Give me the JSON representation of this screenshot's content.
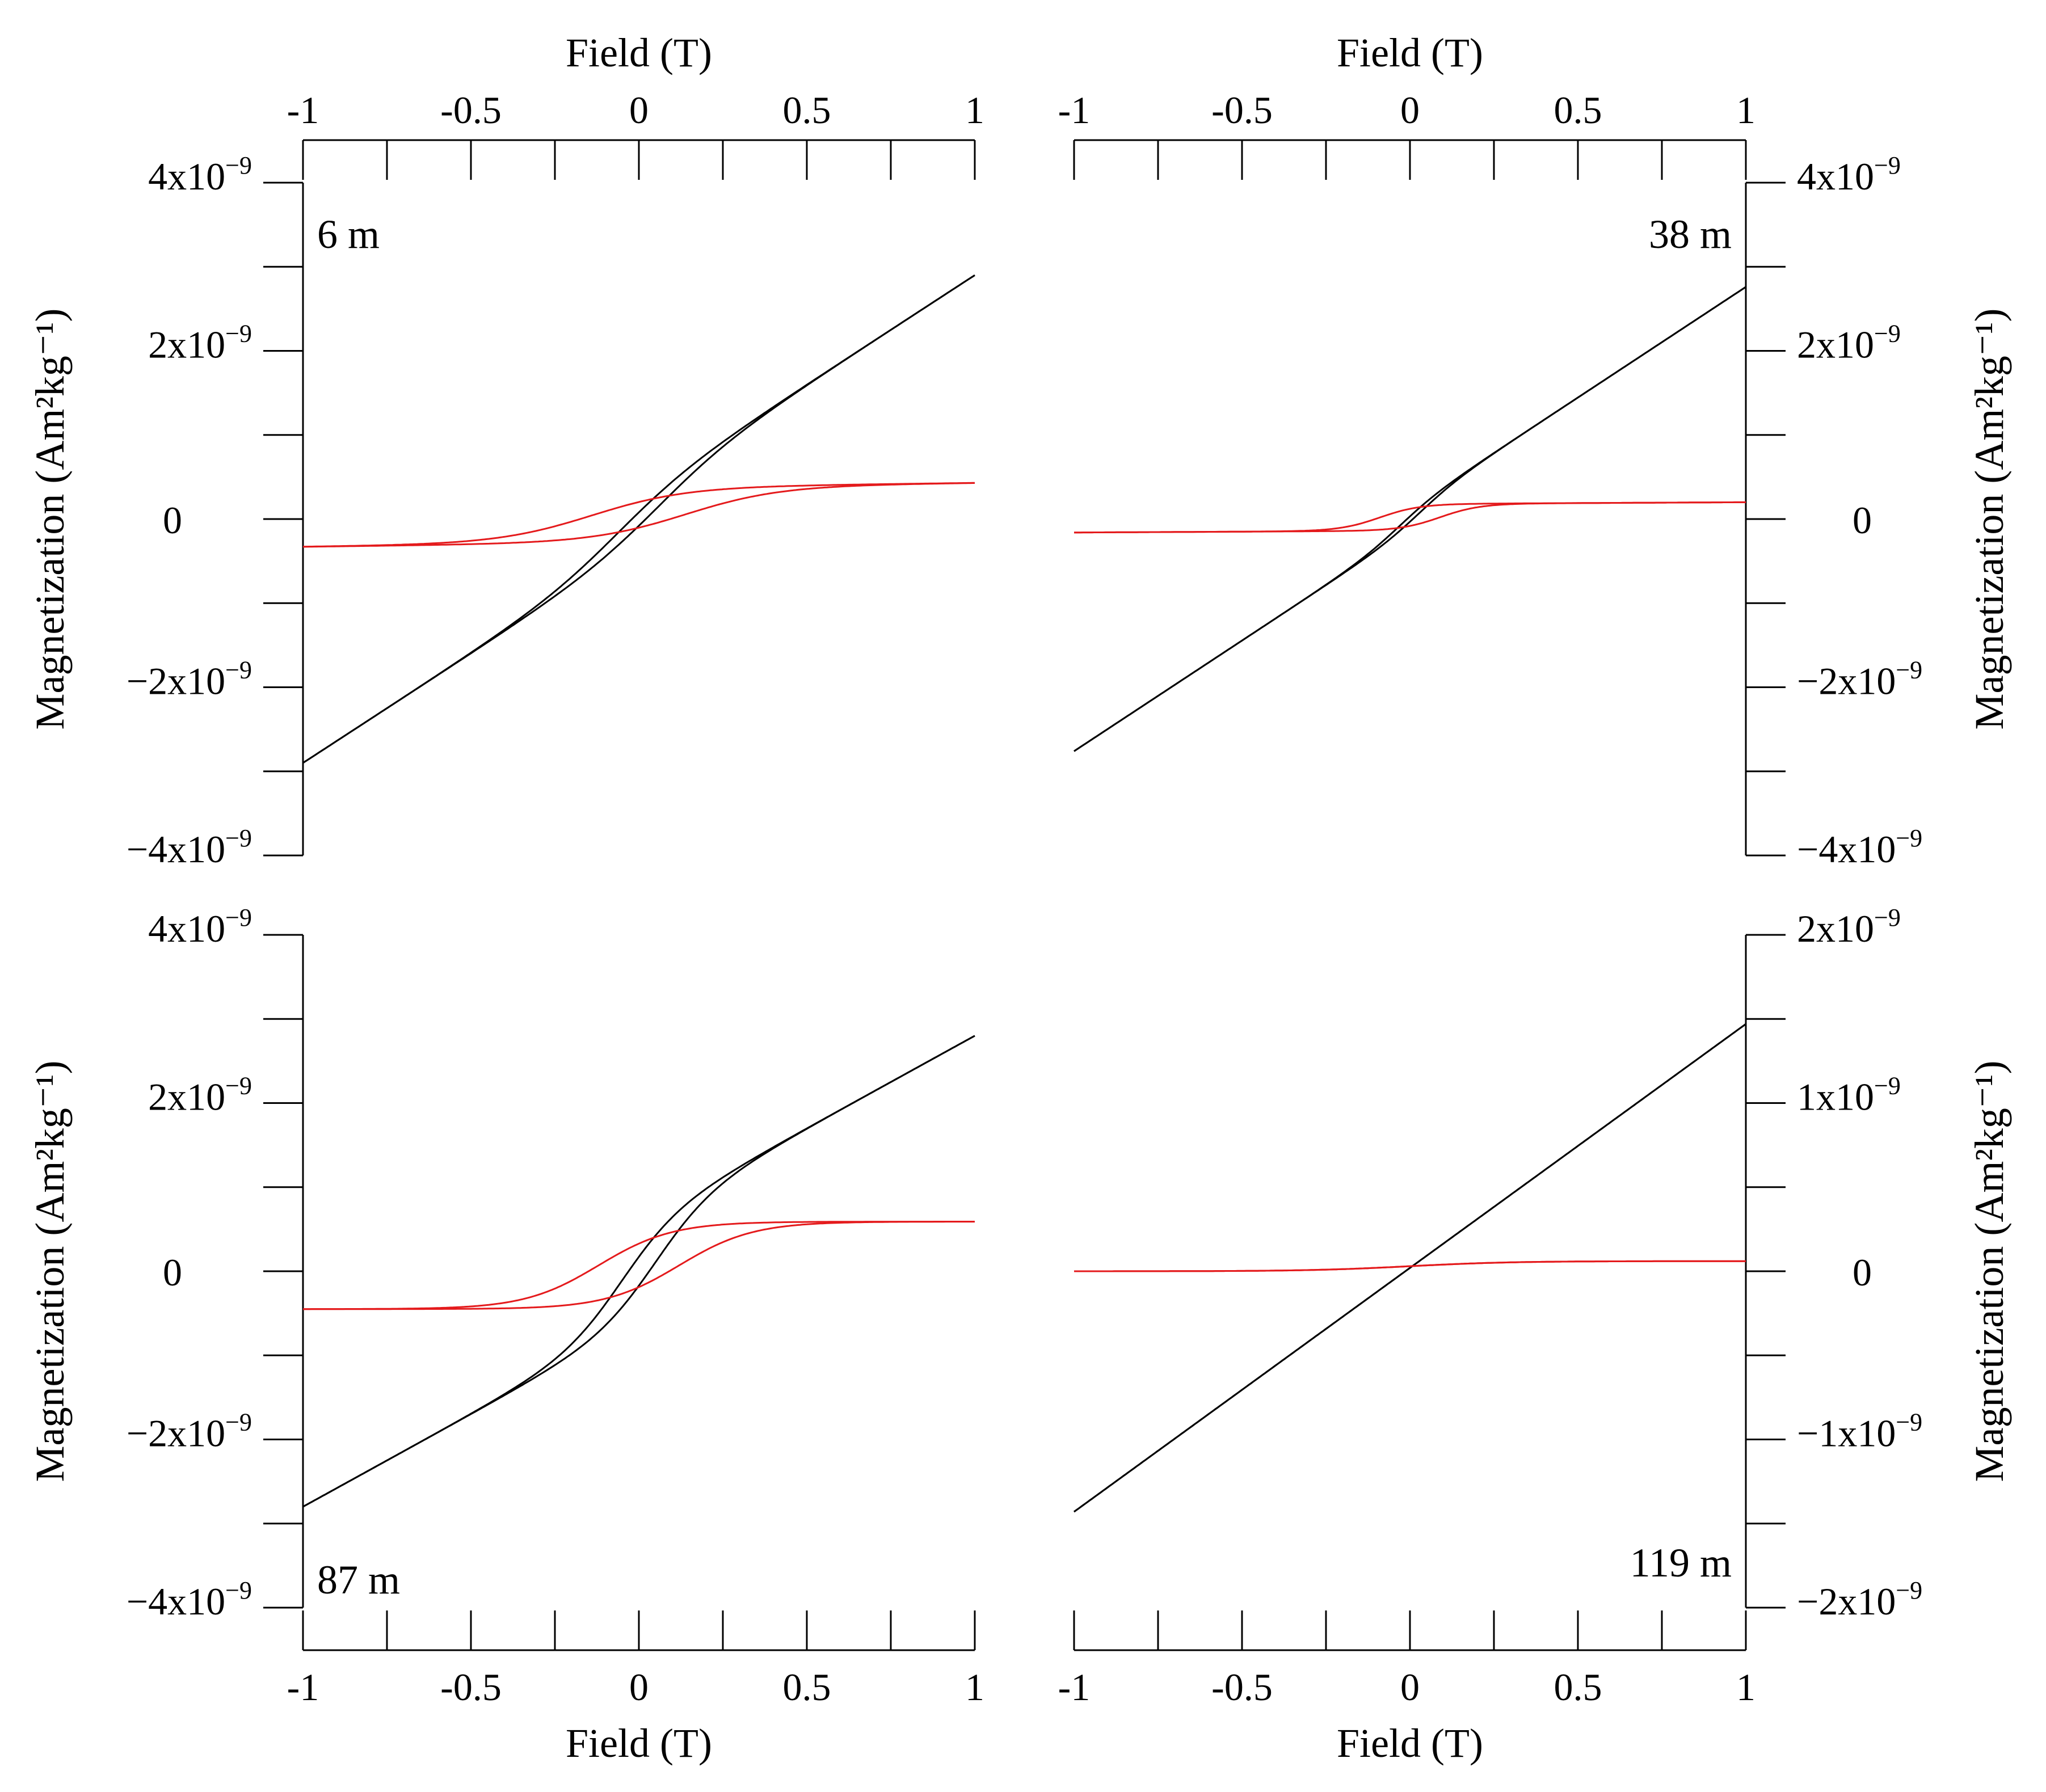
{
  "figure": {
    "x_axis_title": "Field (T)",
    "y_axis_title": "Magnetization (Am²kg⁻¹)"
  },
  "chart_data": [
    {
      "type": "line",
      "panel_label": "6 m",
      "xlabel": "Field (T)",
      "ylabel": "Magnetization (Am²kg⁻¹)",
      "xlim": [
        -1,
        1
      ],
      "ylim": [
        -4e-09,
        4e-09
      ],
      "xticks": [
        -1,
        -0.5,
        0,
        0.5,
        1
      ],
      "xtick_labels": [
        "-1",
        "-0.5",
        "0",
        "0.5",
        "1"
      ],
      "yticks": [
        -4e-09,
        -2e-09,
        0,
        2e-09,
        4e-09
      ],
      "ytick_labels": [
        {
          "base": "−4x10",
          "exp": "−9"
        },
        {
          "base": "−2x10",
          "exp": "−9"
        },
        {
          "base": "0",
          "exp": ""
        },
        {
          "base": "2x10",
          "exp": "−9"
        },
        {
          "base": "4x10",
          "exp": "−9"
        }
      ],
      "grid": false,
      "series": [
        {
          "color": "#000000",
          "loop": {
            "chi": 2.6e-09,
            "ms": 3e-10,
            "k": 0.22,
            "hc": 0.06
          }
        },
        {
          "color": "#e41a1c",
          "loop": {
            "chi": 5e-11,
            "ms": 3.3e-10,
            "k": 0.28,
            "hc": 0.14,
            "offset": 5e-11
          }
        }
      ]
    },
    {
      "type": "line",
      "panel_label": "38 m",
      "xlabel": "Field (T)",
      "ylabel": "Magnetization (Am²kg⁻¹)",
      "xlim": [
        -1,
        1
      ],
      "ylim": [
        -4e-09,
        4e-09
      ],
      "xticks": [
        -1,
        -0.5,
        0,
        0.5,
        1
      ],
      "xtick_labels": [
        "-1",
        "-0.5",
        "0",
        "0.5",
        "1"
      ],
      "yticks": [
        -4e-09,
        -2e-09,
        0,
        2e-09,
        4e-09
      ],
      "ytick_labels": [
        {
          "base": "−4x10",
          "exp": "−9"
        },
        {
          "base": "−2x10",
          "exp": "−9"
        },
        {
          "base": "0",
          "exp": ""
        },
        {
          "base": "2x10",
          "exp": "−9"
        },
        {
          "base": "4x10",
          "exp": "−9"
        }
      ],
      "grid": false,
      "series": [
        {
          "color": "#000000",
          "loop": {
            "chi": 2.63e-09,
            "ms": 1.3e-10,
            "k": 0.12,
            "hc": 0.03
          }
        },
        {
          "color": "#e41a1c",
          "loop": {
            "chi": 2e-11,
            "ms": 1.6e-10,
            "k": 0.12,
            "hc": 0.09,
            "offset": 2e-11
          }
        }
      ]
    },
    {
      "type": "line",
      "panel_label": "87 m",
      "xlabel": "Field (T)",
      "ylabel": "Magnetization (Am²kg⁻¹)",
      "xlim": [
        -1,
        1
      ],
      "ylim": [
        -4e-09,
        4e-09
      ],
      "xticks": [
        -1,
        -0.5,
        0,
        0.5,
        1
      ],
      "xtick_labels": [
        "-1",
        "-0.5",
        "0",
        "0.5",
        "1"
      ],
      "yticks": [
        -4e-09,
        -2e-09,
        0,
        2e-09,
        4e-09
      ],
      "ytick_labels": [
        {
          "base": "−4x10",
          "exp": "−9"
        },
        {
          "base": "−2x10",
          "exp": "−9"
        },
        {
          "base": "0",
          "exp": ""
        },
        {
          "base": "2x10",
          "exp": "−9"
        },
        {
          "base": "4x10",
          "exp": "−9"
        }
      ],
      "grid": false,
      "series": [
        {
          "color": "#000000",
          "loop": {
            "chi": 2.2e-09,
            "ms": 6e-10,
            "k": 0.17,
            "hc": 0.05
          }
        },
        {
          "color": "#e41a1c",
          "loop": {
            "chi": 0.0,
            "ms": 5.2e-10,
            "k": 0.22,
            "hc": 0.12,
            "offset": 7e-11
          }
        }
      ]
    },
    {
      "type": "line",
      "panel_label": "119 m",
      "xlabel": "Field (T)",
      "ylabel": "Magnetization (Am²kg⁻¹)",
      "xlim": [
        -1,
        1
      ],
      "ylim": [
        -2e-09,
        2e-09
      ],
      "xticks": [
        -1,
        -0.5,
        0,
        0.5,
        1
      ],
      "xtick_labels": [
        "-1",
        "-0.5",
        "0",
        "0.5",
        "1"
      ],
      "yticks": [
        -2e-09,
        -1e-09,
        0,
        1e-09,
        2e-09
      ],
      "ytick_labels": [
        {
          "base": "−2x10",
          "exp": "−9"
        },
        {
          "base": "−1x10",
          "exp": "−9"
        },
        {
          "base": "0",
          "exp": ""
        },
        {
          "base": "1x10",
          "exp": "−9"
        },
        {
          "base": "2x10",
          "exp": "−9"
        }
      ],
      "grid": false,
      "series": [
        {
          "color": "#000000",
          "loop": {
            "chi": 1.45e-09,
            "ms": 0.0,
            "k": 0.2,
            "hc": 0.0,
            "offset": 2e-11
          }
        },
        {
          "color": "#e41a1c",
          "loop": {
            "chi": 0.0,
            "ms": 3e-11,
            "k": 0.3,
            "hc": 0.0,
            "offset": 3e-11
          }
        }
      ]
    }
  ]
}
